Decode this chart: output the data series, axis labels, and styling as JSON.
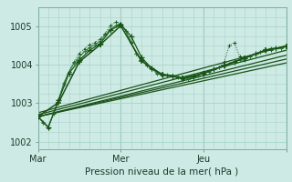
{
  "title": "Pression niveau de la mer( hPa )",
  "background_color": "#ceeae4",
  "grid_color": "#a8d4cc",
  "line_color_dark": "#1a5218",
  "line_color_med": "#2e7d32",
  "xlim": [
    0,
    48
  ],
  "ylim": [
    1001.8,
    1005.5
  ],
  "yticks": [
    1002,
    1003,
    1004,
    1005
  ],
  "xtick_positions": [
    0,
    16,
    32,
    48
  ],
  "xtick_labels": [
    "Mar",
    "Mer",
    "Jeu",
    ""
  ],
  "vline_positions": [
    0,
    16,
    32,
    48
  ],
  "trend_lines": [
    {
      "x": [
        0,
        48
      ],
      "y": [
        1002.65,
        1004.05
      ]
    },
    {
      "x": [
        0,
        48
      ],
      "y": [
        1002.65,
        1004.15
      ]
    },
    {
      "x": [
        0,
        48
      ],
      "y": [
        1002.65,
        1004.25
      ]
    },
    {
      "x": [
        0,
        48
      ],
      "y": [
        1002.7,
        1004.38
      ]
    },
    {
      "x": [
        0,
        48
      ],
      "y": [
        1002.75,
        1004.5
      ]
    }
  ],
  "s1_x": [
    0,
    1,
    2,
    3,
    4,
    5,
    6,
    7,
    8,
    9,
    10,
    11,
    12,
    13,
    14,
    15,
    16,
    17,
    18,
    19,
    20,
    21,
    22,
    23,
    24,
    25,
    26,
    27,
    28,
    29,
    30,
    31,
    32,
    33,
    34,
    35,
    36,
    37,
    38,
    39,
    40,
    41,
    42,
    43,
    44,
    45,
    46,
    47,
    48
  ],
  "s1_y": [
    1002.65,
    1002.5,
    1002.38,
    1002.72,
    1003.1,
    1003.52,
    1003.82,
    1004.05,
    1004.2,
    1004.35,
    1004.45,
    1004.52,
    1004.62,
    1004.78,
    1004.92,
    1005.02,
    1005.08,
    1004.88,
    1004.6,
    1004.3,
    1004.15,
    1004.0,
    1003.9,
    1003.8,
    1003.75,
    1003.74,
    1003.73,
    1003.7,
    1003.65,
    1003.65,
    1003.68,
    1003.73,
    1003.78,
    1003.83,
    1003.88,
    1003.93,
    1003.98,
    1004.03,
    1004.08,
    1004.13,
    1004.18,
    1004.23,
    1004.28,
    1004.33,
    1004.38,
    1004.43,
    1004.43,
    1004.43,
    1004.48
  ],
  "s2_x": [
    0,
    2,
    4,
    6,
    8,
    10,
    12,
    14,
    16,
    18,
    20,
    22,
    24,
    26,
    28,
    30,
    32,
    34,
    36,
    38,
    40,
    42,
    44,
    46,
    48
  ],
  "s2_y": [
    1002.65,
    1002.38,
    1003.08,
    1003.78,
    1004.12,
    1004.38,
    1004.55,
    1004.9,
    1005.05,
    1004.75,
    1004.2,
    1003.9,
    1003.75,
    1003.7,
    1003.65,
    1003.7,
    1003.78,
    1003.88,
    1003.98,
    1004.08,
    1004.18,
    1004.28,
    1004.38,
    1004.43,
    1004.48
  ],
  "s3_x": [
    0,
    4,
    8,
    12,
    16,
    20,
    24,
    28,
    32,
    36,
    40,
    44,
    48
  ],
  "s3_y": [
    1002.65,
    1003.02,
    1004.08,
    1004.52,
    1005.02,
    1004.1,
    1003.75,
    1003.65,
    1003.78,
    1003.98,
    1004.18,
    1004.38,
    1004.48
  ],
  "s4_x": [
    0,
    1,
    2,
    3,
    4,
    5,
    6,
    7,
    8,
    9,
    10,
    11,
    12,
    13,
    14,
    15,
    16,
    17,
    18,
    19,
    20,
    21,
    22,
    23,
    24,
    25,
    26,
    27,
    28,
    29,
    30,
    31,
    32,
    33,
    34,
    35,
    36,
    37,
    38,
    39,
    40,
    41,
    42,
    43,
    44,
    45,
    46,
    47,
    48
  ],
  "s4_y": [
    1002.65,
    1002.48,
    1002.35,
    1002.75,
    1003.08,
    1003.48,
    1003.82,
    1004.08,
    1004.3,
    1004.42,
    1004.52,
    1004.58,
    1004.68,
    1004.82,
    1005.02,
    1005.12,
    1005.08,
    1004.88,
    1004.58,
    1004.28,
    1004.12,
    1003.98,
    1003.88,
    1003.78,
    1003.73,
    1003.73,
    1003.73,
    1003.68,
    1003.63,
    1003.63,
    1003.68,
    1003.73,
    1003.78,
    1003.82,
    1003.88,
    1003.93,
    1004.08,
    1004.5,
    1004.58,
    1004.22,
    1004.12,
    1004.22,
    1004.28,
    1004.33,
    1004.38,
    1004.38,
    1004.43,
    1004.43,
    1004.48
  ]
}
